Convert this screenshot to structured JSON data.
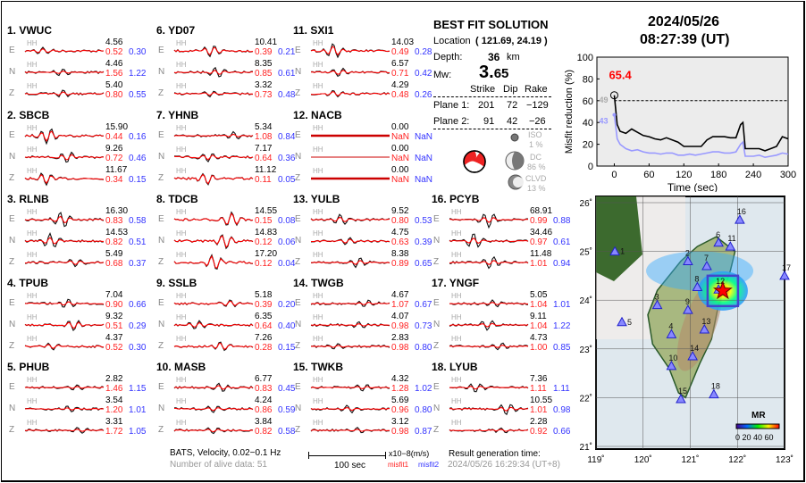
{
  "header": {
    "date": "2024/05/26",
    "time": "08:27:39  (UT)"
  },
  "solution": {
    "title": "BEST FIT SOLUTION",
    "location_label": "Location",
    "location_value": "( 121.69,  24.19 )",
    "depth_label": "Depth:",
    "depth_value": "36",
    "depth_unit": "km",
    "mw_label": "Mw:",
    "mw_int": "3.",
    "mw_dec": "65",
    "col_strike": "Strike",
    "col_dip": "Dip",
    "col_rake": "Rake",
    "planes": [
      {
        "label": "Plane 1:",
        "strike": "201",
        "dip": "72",
        "rake": "−129"
      },
      {
        "label": "Plane 2:",
        "strike": "91",
        "dip": "42",
        "rake": "−26"
      }
    ],
    "iso_label": "ISO",
    "iso_value": "1  %",
    "dc_label": "DC",
    "dc_value": "86 %",
    "clvd_label": "CLVD",
    "clvd_value": "13 %"
  },
  "footer": {
    "bats": "BATS, Velocity, 0.02−0.1 Hz",
    "alive": "Number of alive data: 51",
    "scale": "100 sec",
    "units": "x10−8(m/s)",
    "misfit1": "misfit1",
    "misfit2": "misfit2",
    "gen_label": "Result generation time:",
    "gen_time": "2024/05/26 16:29:34 (UT+8)"
  },
  "component_tag": "HH",
  "stations": [
    {
      "name": "1.  VWUC",
      "comps": [
        [
          "E",
          "4.56",
          "0.52",
          "0.30"
        ],
        [
          "N",
          "4.46",
          "1.56",
          "1.22"
        ],
        [
          "Z",
          "5.40",
          "0.80",
          "0.55"
        ]
      ]
    },
    {
      "name": "2.  SBCB",
      "comps": [
        [
          "E",
          "15.90",
          "0.44",
          "0.16"
        ],
        [
          "N",
          "9.26",
          "0.72",
          "0.46"
        ],
        [
          "Z",
          "11.67",
          "0.34",
          "0.15"
        ]
      ]
    },
    {
      "name": "3.  RLNB",
      "comps": [
        [
          "E",
          "16.30",
          "0.83",
          "0.58"
        ],
        [
          "N",
          "14.53",
          "0.82",
          "0.51"
        ],
        [
          "Z",
          "5.49",
          "0.68",
          "0.37"
        ]
      ]
    },
    {
      "name": "4.  TPUB",
      "comps": [
        [
          "E",
          "7.04",
          "0.90",
          "0.66"
        ],
        [
          "N",
          "9.32",
          "0.51",
          "0.29"
        ],
        [
          "Z",
          "4.37",
          "0.52",
          "0.30"
        ]
      ]
    },
    {
      "name": "5.  PHUB",
      "comps": [
        [
          "E",
          "2.82",
          "1.46",
          "1.15"
        ],
        [
          "N",
          "3.54",
          "1.20",
          "1.01"
        ],
        [
          "Z",
          "3.31",
          "1.72",
          "1.05"
        ]
      ]
    },
    {
      "name": "6.  YD07",
      "comps": [
        [
          "E",
          "10.41",
          "0.39",
          "0.21"
        ],
        [
          "N",
          "8.35",
          "0.85",
          "0.61"
        ],
        [
          "Z",
          "3.32",
          "0.73",
          "0.48"
        ]
      ]
    },
    {
      "name": "7.  YHNB",
      "comps": [
        [
          "E",
          "5.34",
          "1.08",
          "0.84"
        ],
        [
          "N",
          "7.17",
          "0.64",
          "0.36"
        ],
        [
          "Z",
          "11.12",
          "0.11",
          "0.05"
        ]
      ]
    },
    {
      "name": "8.  TDCB",
      "comps": [
        [
          "E",
          "14.55",
          "0.15",
          "0.08"
        ],
        [
          "N",
          "14.83",
          "0.12",
          "0.06"
        ],
        [
          "Z",
          "17.20",
          "0.12",
          "0.04"
        ]
      ]
    },
    {
      "name": "9.  SSLB",
      "comps": [
        [
          "E",
          "5.18",
          "0.39",
          "0.20"
        ],
        [
          "N",
          "6.35",
          "0.64",
          "0.40"
        ],
        [
          "Z",
          "7.26",
          "0.28",
          "0.15"
        ]
      ]
    },
    {
      "name": "10. MASB",
      "comps": [
        [
          "E",
          "6.77",
          "0.83",
          "0.45"
        ],
        [
          "N",
          "4.24",
          "0.86",
          "0.59"
        ],
        [
          "Z",
          "3.84",
          "0.82",
          "0.58"
        ]
      ]
    },
    {
      "name": "11. SXI1",
      "comps": [
        [
          "E",
          "14.03",
          "0.49",
          "0.28"
        ],
        [
          "N",
          "6.57",
          "0.71",
          "0.42"
        ],
        [
          "Z",
          "4.29",
          "0.48",
          "0.26"
        ]
      ]
    },
    {
      "name": "12. NACB",
      "comps": [
        [
          "E",
          "0.00",
          "NaN",
          "NaN"
        ],
        [
          "N",
          "0.00",
          "NaN",
          "NaN"
        ],
        [
          "Z",
          "0.00",
          "NaN",
          "NaN"
        ]
      ]
    },
    {
      "name": "13. YULB",
      "comps": [
        [
          "E",
          "9.52",
          "0.80",
          "0.53"
        ],
        [
          "N",
          "4.75",
          "0.63",
          "0.39"
        ],
        [
          "Z",
          "8.38",
          "0.89",
          "0.65"
        ]
      ]
    },
    {
      "name": "14. TWGB",
      "comps": [
        [
          "E",
          "4.67",
          "1.07",
          "0.67"
        ],
        [
          "N",
          "4.07",
          "0.98",
          "0.73"
        ],
        [
          "Z",
          "2.83",
          "0.98",
          "0.80"
        ]
      ]
    },
    {
      "name": "15. TWKB",
      "comps": [
        [
          "E",
          "4.32",
          "1.28",
          "1.02"
        ],
        [
          "N",
          "5.69",
          "0.96",
          "0.80"
        ],
        [
          "Z",
          "3.12",
          "0.98",
          "0.87"
        ]
      ]
    },
    {
      "name": "16. PCYB",
      "comps": [
        [
          "E",
          "68.91",
          "0.99",
          "0.88"
        ],
        [
          "N",
          "34.46",
          "0.97",
          "0.61"
        ],
        [
          "Z",
          "11.48",
          "1.01",
          "0.94"
        ]
      ]
    },
    {
      "name": "17. YNGF",
      "comps": [
        [
          "E",
          "5.05",
          "1.04",
          "1.01"
        ],
        [
          "N",
          "9.11",
          "1.04",
          "1.22"
        ],
        [
          "Z",
          "4.73",
          "1.00",
          "0.85"
        ]
      ]
    },
    {
      "name": "18. LYUB",
      "comps": [
        [
          "E",
          "7.36",
          "1.11",
          "1.11"
        ],
        [
          "N",
          "10.55",
          "1.01",
          "0.98"
        ],
        [
          "Z",
          "2.28",
          "0.92",
          "0.66"
        ]
      ]
    }
  ],
  "chart_data": {
    "type": "line",
    "xlabel": "Time (sec)",
    "ylabel": "Misfit reduction (%)",
    "xlim": [
      -30,
      300
    ],
    "ylim": [
      0,
      100
    ],
    "xticks": [
      "0",
      "60",
      "120",
      "180",
      "240",
      "300"
    ],
    "yticks": [
      "0",
      "20",
      "40",
      "60",
      "80",
      "100"
    ],
    "best_label": "65.4",
    "marker_black": "49",
    "marker_blue": "43",
    "threshold": 60,
    "x": [
      0,
      5,
      10,
      20,
      30,
      40,
      50,
      60,
      70,
      80,
      90,
      100,
      110,
      120,
      130,
      140,
      150,
      160,
      170,
      180,
      190,
      200,
      210,
      218,
      222,
      226,
      240,
      250,
      260,
      270,
      280,
      290,
      300
    ],
    "series": [
      {
        "name": "misfit1",
        "color": "#000000",
        "values": [
          65,
          38,
          32,
          30,
          34,
          31,
          28,
          27,
          25,
          24,
          26,
          24,
          22,
          18,
          18,
          18,
          18,
          24,
          27,
          27,
          27,
          26,
          26,
          38,
          40,
          16,
          16,
          16,
          14,
          16,
          18,
          27,
          25
        ]
      },
      {
        "name": "misfit2",
        "color": "#9999ff",
        "values": [
          47,
          25,
          20,
          16,
          14,
          15,
          13,
          12,
          12,
          11,
          12,
          12,
          10,
          10,
          11,
          10,
          11,
          12,
          13,
          13,
          12,
          12,
          13,
          20,
          22,
          9,
          9,
          10,
          8,
          9,
          10,
          12,
          11
        ]
      }
    ]
  },
  "map": {
    "lon_ticks": [
      "119˚",
      "120˚",
      "121˚",
      "122˚",
      "123˚"
    ],
    "lat_ticks": [
      "21˚",
      "22˚",
      "23˚",
      "24˚",
      "25˚",
      "26˚"
    ],
    "legend_title": "MR",
    "legend_ticks": "0 20 40 60",
    "epicenter": [
      121.69,
      24.19
    ],
    "stations": [
      [
        "1",
        119.4,
        25.0
      ],
      [
        "2",
        120.95,
        24.8
      ],
      [
        "3",
        120.3,
        23.9
      ],
      [
        "4",
        120.6,
        23.3
      ],
      [
        "5",
        119.55,
        23.55
      ],
      [
        "6",
        121.6,
        25.18
      ],
      [
        "7",
        121.35,
        24.7
      ],
      [
        "8",
        121.15,
        24.27
      ],
      [
        "9",
        120.95,
        23.8
      ],
      [
        "10",
        120.6,
        22.65
      ],
      [
        "11",
        121.85,
        25.1
      ],
      [
        "12",
        121.6,
        24.22
      ],
      [
        "13",
        121.3,
        23.4
      ],
      [
        "14",
        121.05,
        22.85
      ],
      [
        "15",
        120.8,
        21.97
      ],
      [
        "16",
        122.05,
        25.65
      ],
      [
        "17",
        123.0,
        24.5
      ],
      [
        "18",
        121.5,
        22.07
      ]
    ]
  }
}
